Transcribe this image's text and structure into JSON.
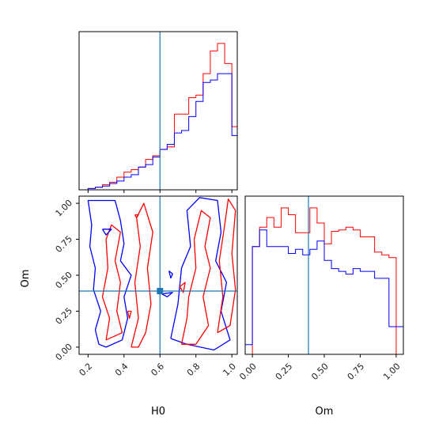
{
  "chart_data": [
    {
      "panel": "marginal-H0",
      "type": "histogram-step",
      "xlim": [
        0.15,
        1.03
      ],
      "bins": [
        0.2,
        0.24,
        0.28,
        0.32,
        0.36,
        0.4,
        0.44,
        0.48,
        0.52,
        0.56,
        0.6,
        0.64,
        0.68,
        0.72,
        0.76,
        0.8,
        0.84,
        0.88,
        0.92,
        0.96,
        1.0,
        1.03
      ],
      "series": [
        {
          "color": "#ff0000",
          "values": [
            1,
            2,
            4,
            6,
            10,
            14,
            16,
            18,
            24,
            27,
            32,
            34,
            60,
            60,
            73,
            75,
            92,
            110,
            116,
            100,
            50
          ]
        },
        {
          "color": "#0000ff",
          "values": [
            1,
            2,
            3,
            5,
            7,
            10,
            12,
            18,
            20,
            26,
            32,
            36,
            45,
            47,
            58,
            70,
            85,
            87,
            92,
            92,
            43
          ]
        }
      ],
      "truth": 0.6,
      "truth_color": "#1f77b4"
    },
    {
      "panel": "marginal-Om",
      "type": "histogram-step",
      "xlim": [
        -0.05,
        1.05
      ],
      "xticks": [
        "0.00",
        "0.25",
        "0.50",
        "0.75",
        "1.00"
      ],
      "xlabel": "Om",
      "bins": [
        -0.05,
        0.0,
        0.05,
        0.1,
        0.15,
        0.2,
        0.25,
        0.3,
        0.35,
        0.4,
        0.45,
        0.5,
        0.55,
        0.6,
        0.65,
        0.7,
        0.75,
        0.8,
        0.85,
        0.9,
        0.95,
        1.0,
        1.05
      ],
      "series": [
        {
          "color": "#ff0000",
          "values": [
            0,
            78,
            92,
            99,
            92,
            106,
            101,
            88,
            88,
            106,
            95,
            80,
            89,
            90,
            92,
            90,
            85,
            85,
            74,
            72,
            70,
            0
          ]
        },
        {
          "color": "#0000ff",
          "values": [
            7,
            78,
            90,
            78,
            78,
            78,
            73,
            76,
            72,
            76,
            82,
            68,
            62,
            60,
            58,
            62,
            60,
            60,
            55,
            55,
            20,
            20
          ]
        }
      ],
      "truth": 0.39,
      "truth_color": "#1f77b4"
    },
    {
      "panel": "joint-H0-Om",
      "type": "contour",
      "xlim": [
        0.15,
        1.03
      ],
      "ylim": [
        -0.05,
        1.05
      ],
      "xticks": [
        "0.2",
        "0.4",
        "0.6",
        "0.8",
        "1.0"
      ],
      "yticks": [
        "0.00",
        "0.25",
        "0.50",
        "0.75",
        "1.00"
      ],
      "xlabel": "H0",
      "ylabel": "Om",
      "truth": {
        "x": 0.6,
        "y": 0.39
      },
      "truth_color": "#1f77b4",
      "contours": [
        {
          "color": "#0000ff",
          "points": [
            [
              0.26,
              0.02
            ],
            [
              0.24,
              0.12
            ],
            [
              0.27,
              0.25
            ],
            [
              0.23,
              0.4
            ],
            [
              0.24,
              0.55
            ],
            [
              0.21,
              0.7
            ],
            [
              0.22,
              0.85
            ],
            [
              0.2,
              1.02
            ],
            [
              0.35,
              1.02
            ],
            [
              0.38,
              0.88
            ],
            [
              0.4,
              0.72
            ],
            [
              0.38,
              0.6
            ],
            [
              0.44,
              0.5
            ],
            [
              0.4,
              0.35
            ],
            [
              0.42,
              0.2
            ],
            [
              0.39,
              0.05
            ],
            [
              0.3,
              0.0
            ],
            [
              0.26,
              0.02
            ]
          ]
        },
        {
          "color": "#ff0000",
          "points": [
            [
              0.3,
              0.05
            ],
            [
              0.32,
              0.2
            ],
            [
              0.28,
              0.35
            ],
            [
              0.31,
              0.55
            ],
            [
              0.3,
              0.75
            ],
            [
              0.33,
              0.85
            ],
            [
              0.38,
              0.8
            ],
            [
              0.35,
              0.6
            ],
            [
              0.38,
              0.45
            ],
            [
              0.36,
              0.25
            ],
            [
              0.39,
              0.1
            ],
            [
              0.3,
              0.05
            ]
          ]
        },
        {
          "color": "#ff0000",
          "points": [
            [
              0.44,
              0.0
            ],
            [
              0.48,
              0.2
            ],
            [
              0.46,
              0.45
            ],
            [
              0.49,
              0.7
            ],
            [
              0.47,
              0.9
            ],
            [
              0.51,
              1.0
            ],
            [
              0.56,
              0.8
            ],
            [
              0.53,
              0.55
            ],
            [
              0.55,
              0.3
            ],
            [
              0.52,
              0.1
            ],
            [
              0.48,
              0.0
            ],
            [
              0.44,
              0.0
            ]
          ]
        },
        {
          "color": "#0000ff",
          "points": [
            [
              0.66,
              0.06
            ],
            [
              0.7,
              0.3
            ],
            [
              0.72,
              0.55
            ],
            [
              0.77,
              0.7
            ],
            [
              0.75,
              0.95
            ],
            [
              0.82,
              1.04
            ],
            [
              0.92,
              1.02
            ],
            [
              0.94,
              0.8
            ],
            [
              0.91,
              0.6
            ],
            [
              0.97,
              0.45
            ],
            [
              0.94,
              0.25
            ],
            [
              0.99,
              0.05
            ],
            [
              0.9,
              -0.02
            ],
            [
              0.75,
              0.02
            ],
            [
              0.66,
              0.06
            ]
          ]
        },
        {
          "color": "#ff0000",
          "points": [
            [
              0.72,
              0.02
            ],
            [
              0.75,
              0.2
            ],
            [
              0.76,
              0.35
            ],
            [
              0.8,
              0.55
            ],
            [
              0.79,
              0.75
            ],
            [
              0.83,
              0.95
            ],
            [
              0.88,
              0.9
            ],
            [
              0.85,
              0.7
            ],
            [
              0.88,
              0.55
            ],
            [
              0.84,
              0.35
            ],
            [
              0.87,
              0.15
            ],
            [
              0.8,
              0.02
            ],
            [
              0.72,
              0.02
            ]
          ]
        },
        {
          "color": "#ff0000",
          "points": [
            [
              0.92,
              0.1
            ],
            [
              0.95,
              0.35
            ],
            [
              0.93,
              0.6
            ],
            [
              0.96,
              0.85
            ],
            [
              0.98,
              1.03
            ],
            [
              1.02,
              0.95
            ],
            [
              1.0,
              0.65
            ],
            [
              1.02,
              0.4
            ],
            [
              0.99,
              0.15
            ],
            [
              0.92,
              0.1
            ]
          ]
        },
        {
          "color": "#0000ff",
          "points": [
            [
              0.28,
              0.82
            ],
            [
              0.33,
              0.82
            ],
            [
              0.3,
              0.78
            ],
            [
              0.28,
              0.82
            ]
          ]
        },
        {
          "color": "#0000ff",
          "points": [
            [
              0.65,
              0.53
            ],
            [
              0.67,
              0.51
            ],
            [
              0.66,
              0.48
            ],
            [
              0.65,
              0.53
            ]
          ]
        },
        {
          "color": "#ff0000",
          "points": [
            [
              0.46,
              0.92
            ],
            [
              0.48,
              0.92
            ],
            [
              0.47,
              0.9
            ],
            [
              0.46,
              0.92
            ]
          ]
        },
        {
          "color": "#ff0000",
          "points": [
            [
              0.42,
              0.25
            ],
            [
              0.44,
              0.25
            ],
            [
              0.43,
              0.2
            ],
            [
              0.42,
              0.25
            ]
          ]
        },
        {
          "color": "#0000ff",
          "points": [
            [
              0.61,
              0.37
            ],
            [
              0.67,
              0.38
            ],
            [
              0.64,
              0.35
            ],
            [
              0.61,
              0.37
            ]
          ]
        },
        {
          "color": "#ff0000",
          "points": [
            [
              0.71,
              0.42
            ],
            [
              0.74,
              0.45
            ],
            [
              0.73,
              0.38
            ],
            [
              0.71,
              0.42
            ]
          ]
        }
      ]
    }
  ]
}
